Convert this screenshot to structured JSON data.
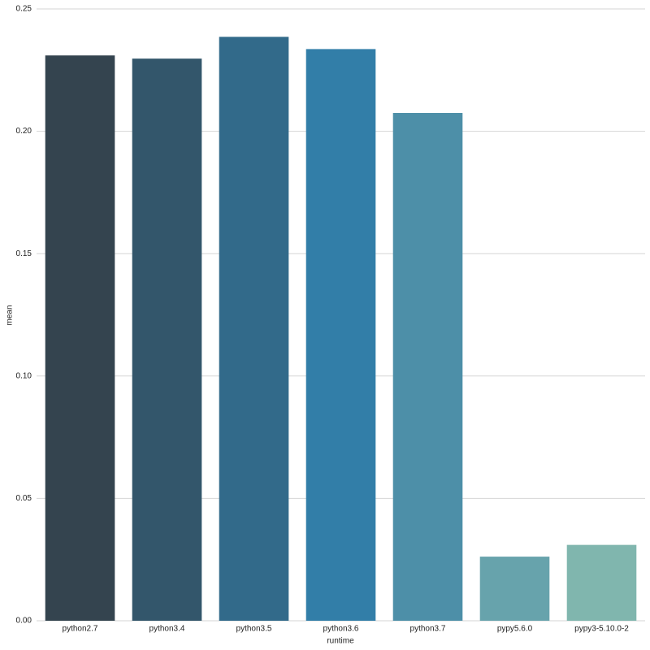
{
  "chart_data": {
    "type": "bar",
    "xlabel": "runtime",
    "ylabel": "mean",
    "categories": [
      "python2.7",
      "python3.4",
      "python3.5",
      "python3.6",
      "python3.7",
      "pypy5.6.0",
      "pypy3-5.10.0-2"
    ],
    "values": [
      0.231,
      0.2297,
      0.2386,
      0.2336,
      0.2075,
      0.0262,
      0.031
    ],
    "colors": [
      "#34444f",
      "#33566b",
      "#326a8a",
      "#327ea8",
      "#4d8fa8",
      "#67a3ac",
      "#80b6ae"
    ],
    "ylim": [
      0,
      0.25
    ],
    "yticks": [
      {
        "value": 0,
        "label": "0.00"
      },
      {
        "value": 0.05,
        "label": "0.05"
      },
      {
        "value": 0.1,
        "label": "0.10"
      },
      {
        "value": 0.15,
        "label": "0.15"
      },
      {
        "value": 0.2,
        "label": "0.20"
      },
      {
        "value": 0.25,
        "label": "0.25"
      }
    ],
    "grid": true
  }
}
